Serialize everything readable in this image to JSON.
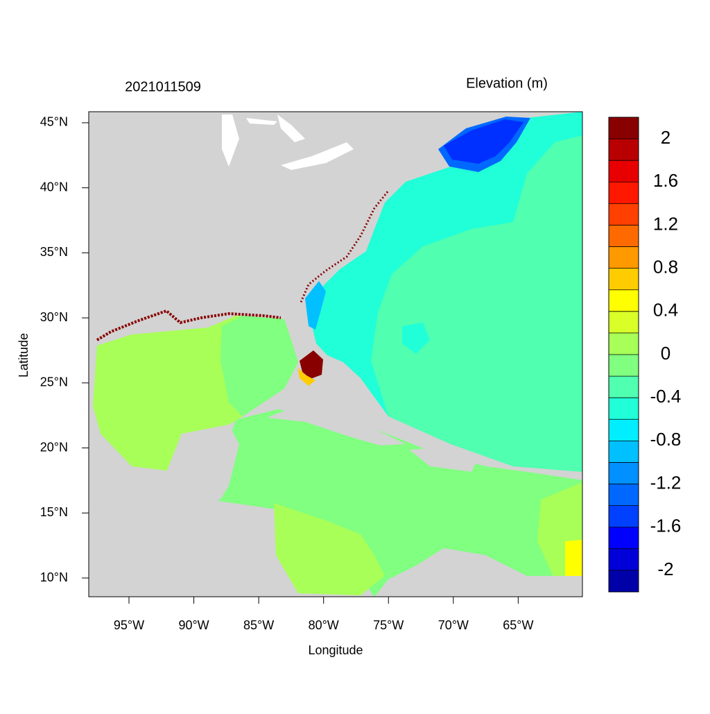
{
  "chart_data": {
    "type": "map",
    "title": "2021011509",
    "subtitle": "Elevation (m)",
    "x_label": "Longitude",
    "y_label": "Latitude",
    "xlim": [
      -98.1,
      -60.05
    ],
    "ylim": [
      8.56,
      45.85
    ],
    "xticks": [
      {
        "value": -95,
        "label": "95°W"
      },
      {
        "value": -90,
        "label": "90°W"
      },
      {
        "value": -85,
        "label": "85°W"
      },
      {
        "value": -80,
        "label": "80°W"
      },
      {
        "value": -75,
        "label": "75°W"
      },
      {
        "value": -70,
        "label": "70°W"
      },
      {
        "value": -65,
        "label": "65°W"
      }
    ],
    "yticks": [
      {
        "value": 10,
        "label": "10°N"
      },
      {
        "value": 15,
        "label": "15°N"
      },
      {
        "value": 20,
        "label": "20°N"
      },
      {
        "value": 25,
        "label": "25°N"
      },
      {
        "value": 30,
        "label": "30°N"
      },
      {
        "value": 35,
        "label": "35°N"
      },
      {
        "value": 40,
        "label": "40°N"
      },
      {
        "value": 45,
        "label": "45°N"
      }
    ],
    "colorbar": {
      "boundaries": [
        -2,
        -1.8,
        -1.6,
        -1.4,
        -1.2,
        -1,
        -0.8,
        -0.6,
        -0.4,
        -0.2,
        0,
        0.2,
        0.4,
        0.6,
        0.8,
        1,
        1.2,
        1.4,
        1.6,
        1.8,
        2
      ],
      "colors": [
        "#0000a8",
        "#0000d8",
        "#0000ff",
        "#0040ff",
        "#0068ff",
        "#0090ff",
        "#00c0ff",
        "#00eeff",
        "#20ffd8",
        "#50ffb0",
        "#80ff80",
        "#a8ff58",
        "#d8ff28",
        "#ffff00",
        "#ffcc00",
        "#ff9900",
        "#ff6a00",
        "#ff4000",
        "#ff1800",
        "#e80000",
        "#b80000",
        "#880000"
      ],
      "ticks": [
        2,
        1.6,
        1.2,
        0.8,
        0.4,
        0,
        -0.4,
        -0.8,
        -1.2,
        -1.6,
        -2
      ]
    }
  }
}
